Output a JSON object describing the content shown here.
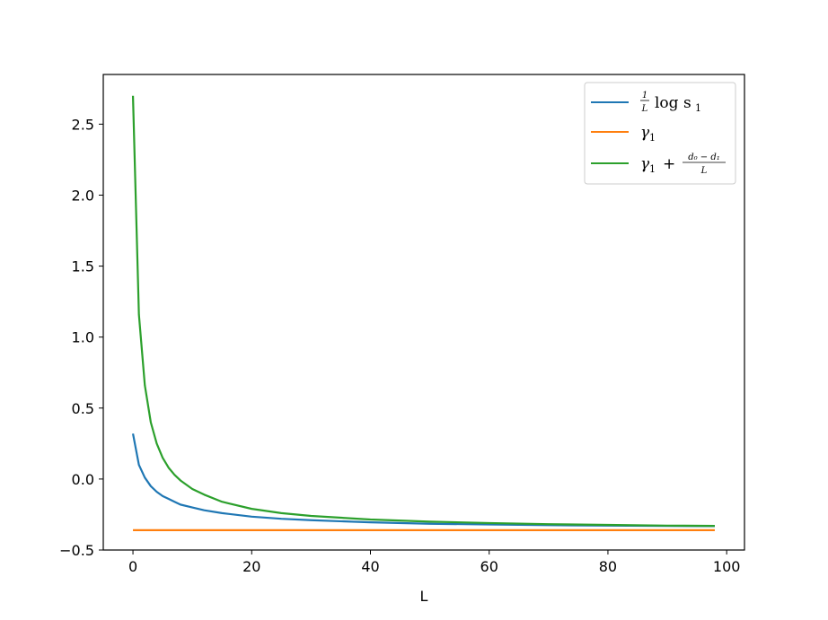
{
  "chart_data": {
    "type": "line",
    "title": "",
    "xlabel": "L",
    "ylabel": "",
    "xlim": [
      -5,
      103
    ],
    "ylim": [
      -0.5,
      2.85
    ],
    "x_ticks": [
      0,
      20,
      40,
      60,
      80,
      100
    ],
    "x_tick_labels": [
      "0",
      "20",
      "40",
      "60",
      "80",
      "100"
    ],
    "y_ticks": [
      -0.5,
      0.0,
      0.5,
      1.0,
      1.5,
      2.0,
      2.5
    ],
    "y_tick_labels": [
      "−0.5",
      "0.0",
      "0.5",
      "1.0",
      "1.5",
      "2.0",
      "2.5"
    ],
    "grid": false,
    "legend_position": "top-right",
    "series": [
      {
        "key": "log_s1",
        "color": "#1f77b4",
        "x": [
          0,
          1,
          2,
          3,
          4,
          5,
          6,
          7,
          8,
          10,
          12,
          15,
          20,
          25,
          30,
          40,
          50,
          60,
          70,
          80,
          90,
          98
        ],
        "values": [
          0.32,
          0.1,
          0.01,
          -0.05,
          -0.09,
          -0.12,
          -0.14,
          -0.16,
          -0.18,
          -0.2,
          -0.22,
          -0.24,
          -0.265,
          -0.28,
          -0.29,
          -0.305,
          -0.315,
          -0.32,
          -0.325,
          -0.328,
          -0.33,
          -0.332
        ]
      },
      {
        "key": "gamma1",
        "color": "#ff7f0e",
        "x": [
          0,
          98
        ],
        "values": [
          -0.36,
          -0.36
        ]
      },
      {
        "key": "gamma1_plus",
        "color": "#2ca02c",
        "x": [
          0,
          1,
          2,
          3,
          4,
          5,
          6,
          7,
          8,
          10,
          12,
          15,
          20,
          25,
          30,
          40,
          50,
          60,
          70,
          80,
          90,
          98
        ],
        "values": [
          2.7,
          1.16,
          0.66,
          0.4,
          0.25,
          0.15,
          0.08,
          0.03,
          -0.01,
          -0.07,
          -0.11,
          -0.16,
          -0.21,
          -0.24,
          -0.26,
          -0.285,
          -0.3,
          -0.31,
          -0.318,
          -0.323,
          -0.328,
          -0.33
        ]
      }
    ],
    "legend": {
      "entry1": {
        "frac_num": "1",
        "frac_den": "L",
        "text": "log s",
        "sub": "1"
      },
      "entry2": {
        "text": "γ",
        "sub": "1"
      },
      "entry3": {
        "text": "γ",
        "sub": "1",
        "plus": "+",
        "frac_num": "d₀ − d₁",
        "frac_den": "L"
      }
    }
  }
}
